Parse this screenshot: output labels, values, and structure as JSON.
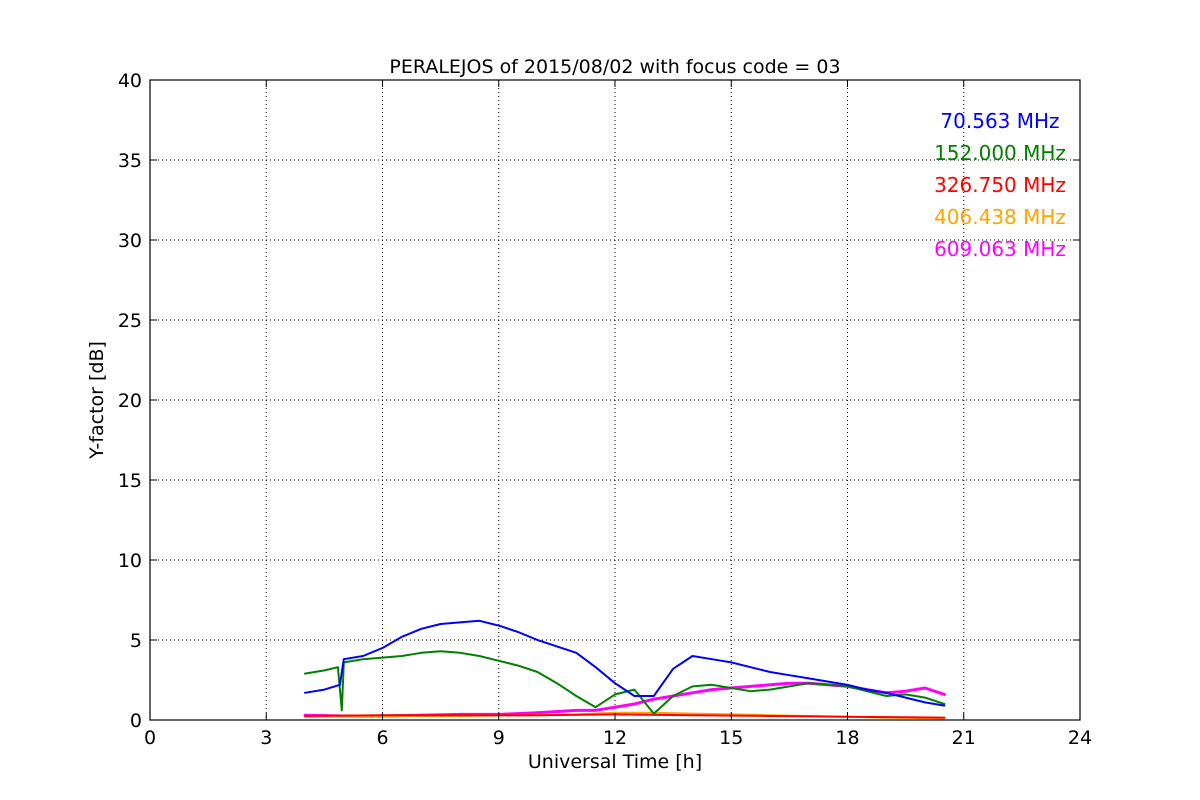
{
  "chart_data": {
    "type": "line",
    "title": "PERALEJOS of 2015/08/02 with focus code = 03",
    "xlabel": "Universal Time [h]",
    "ylabel": "Y-factor [dB]",
    "xlim": [
      0,
      24
    ],
    "ylim": [
      0,
      40
    ],
    "xticks": [
      0,
      3,
      6,
      9,
      12,
      15,
      18,
      21,
      24
    ],
    "yticks": [
      0,
      5,
      10,
      15,
      20,
      25,
      30,
      35,
      40
    ],
    "xtick_labels": [
      "0",
      "3",
      "6",
      "9",
      "12",
      "15",
      "18",
      "21",
      "24"
    ],
    "ytick_labels": [
      "0",
      "5",
      "10",
      "15",
      "20",
      "25",
      "30",
      "35",
      "40"
    ],
    "grid": true,
    "legend_position": "top-right",
    "series": [
      {
        "name": "70.563 MHz",
        "color": "#0000ff",
        "x": [
          4.0,
          4.5,
          4.9,
          5.0,
          5.5,
          6.0,
          6.5,
          7.0,
          7.5,
          8.0,
          8.5,
          9.0,
          9.5,
          10.0,
          10.5,
          11.0,
          11.5,
          12.0,
          12.5,
          13.0,
          13.5,
          14.0,
          14.5,
          15.0,
          15.5,
          16.0,
          16.5,
          17.0,
          17.5,
          18.0,
          18.5,
          19.0,
          19.5,
          20.0,
          20.5
        ],
        "y": [
          1.7,
          1.9,
          2.2,
          3.8,
          4.0,
          4.5,
          5.2,
          5.7,
          6.0,
          6.1,
          6.2,
          5.9,
          5.5,
          5.0,
          4.6,
          4.2,
          3.3,
          2.3,
          1.5,
          1.5,
          3.2,
          4.0,
          3.8,
          3.6,
          3.3,
          3.0,
          2.8,
          2.6,
          2.4,
          2.2,
          1.9,
          1.7,
          1.4,
          1.1,
          0.9
        ]
      },
      {
        "name": "152.000 MHz",
        "color": "#008000",
        "x": [
          4.0,
          4.5,
          4.85,
          4.95,
          5.0,
          5.5,
          6.0,
          6.5,
          7.0,
          7.5,
          8.0,
          8.5,
          9.0,
          9.5,
          10.0,
          10.5,
          11.0,
          11.5,
          12.0,
          12.5,
          13.0,
          13.5,
          14.0,
          14.5,
          15.0,
          15.5,
          16.0,
          16.5,
          17.0,
          17.5,
          18.0,
          18.5,
          19.0,
          19.5,
          20.0,
          20.5
        ],
        "y": [
          2.9,
          3.1,
          3.3,
          0.6,
          3.6,
          3.8,
          3.9,
          4.0,
          4.2,
          4.3,
          4.2,
          4.0,
          3.7,
          3.4,
          3.0,
          2.3,
          1.5,
          0.8,
          1.6,
          1.9,
          0.4,
          1.5,
          2.1,
          2.2,
          2.0,
          1.8,
          1.9,
          2.1,
          2.3,
          2.2,
          2.1,
          1.8,
          1.5,
          1.6,
          1.4,
          1.0
        ]
      },
      {
        "name": "326.750 MHz",
        "color": "#ff0000",
        "x": [
          4.0,
          6.0,
          8.0,
          10.0,
          12.0,
          14.0,
          16.0,
          18.0,
          20.5
        ],
        "y": [
          0.25,
          0.3,
          0.3,
          0.3,
          0.35,
          0.3,
          0.25,
          0.2,
          0.15
        ]
      },
      {
        "name": "406.438 MHz",
        "color": "#ffa500",
        "x": [
          4.0,
          6.0,
          8.0,
          10.0,
          11.0,
          12.0,
          13.0,
          14.0,
          15.0,
          16.0,
          17.0,
          18.0,
          19.0,
          20.5
        ],
        "y": [
          0.2,
          0.25,
          0.25,
          0.3,
          0.35,
          0.45,
          0.45,
          0.4,
          0.35,
          0.3,
          0.25,
          0.2,
          0.15,
          0.1
        ]
      },
      {
        "name": "609.063 MHz",
        "color": "#ff00ff",
        "x": [
          4.0,
          5.0,
          6.0,
          7.0,
          8.0,
          9.0,
          10.0,
          11.0,
          11.5,
          12.0,
          12.5,
          13.0,
          13.5,
          14.0,
          14.5,
          15.0,
          15.5,
          16.0,
          16.5,
          17.0,
          17.5,
          18.0,
          18.5,
          19.0,
          19.5,
          20.0,
          20.5
        ],
        "y": [
          0.3,
          0.25,
          0.25,
          0.3,
          0.35,
          0.35,
          0.45,
          0.6,
          0.6,
          0.8,
          1.0,
          1.3,
          1.5,
          1.7,
          1.9,
          2.0,
          2.1,
          2.2,
          2.3,
          2.3,
          2.2,
          2.1,
          1.9,
          1.7,
          1.8,
          2.0,
          1.6
        ]
      }
    ]
  }
}
